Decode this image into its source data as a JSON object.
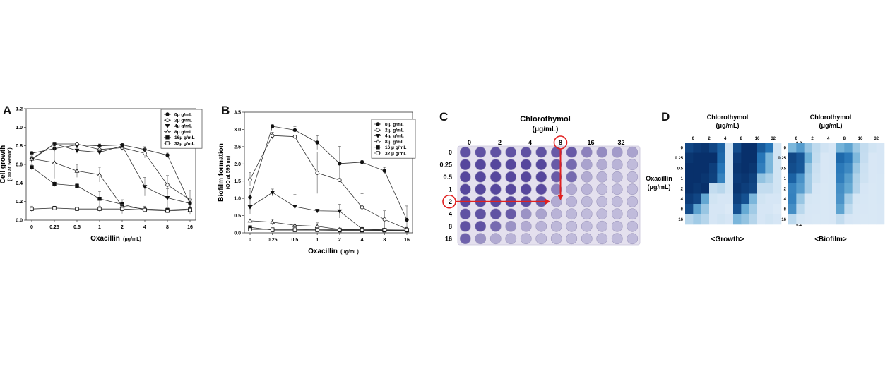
{
  "panels": {
    "A": {
      "letter": "A"
    },
    "B": {
      "letter": "B"
    },
    "C": {
      "letter": "C"
    },
    "D": {
      "letter": "D"
    }
  },
  "chart_data": [
    {
      "id": "A",
      "type": "line",
      "ylabel": "Cell growth",
      "ylabel_sub": "(OD at 595nm)",
      "xlabel": "Oxacillin",
      "xlabel_unit": "(μg/mL)",
      "categories": [
        "0",
        "0.25",
        "0.5",
        "1",
        "2",
        "4",
        "8",
        "16"
      ],
      "ylim": [
        0,
        1.2
      ],
      "yticks": [
        "0.0",
        "0.2",
        "0.4",
        "0.6",
        "0.8",
        "1.0",
        "1.2"
      ],
      "legend_position": "top-right",
      "series": [
        {
          "name": "0μ g/mL",
          "marker": "circle-filled",
          "values": [
            0.72,
            0.77,
            0.81,
            0.8,
            0.81,
            0.76,
            0.7,
            0.18
          ],
          "errors": [
            0.02,
            0.03,
            0.02,
            0.02,
            0.02,
            0.03,
            0.03,
            0.04
          ]
        },
        {
          "name": "2μ g/mL",
          "marker": "circle-open",
          "values": [
            0.66,
            0.82,
            0.82,
            0.76,
            0.78,
            0.72,
            0.38,
            0.22
          ],
          "errors": [
            0.03,
            0.02,
            0.02,
            0.03,
            0.03,
            0.05,
            0.1,
            0.1
          ]
        },
        {
          "name": "4μ g/mL",
          "marker": "triangle-down-filled",
          "values": [
            0.65,
            0.82,
            0.75,
            0.73,
            0.8,
            0.36,
            0.24,
            0.18
          ],
          "errors": [
            0.02,
            0.02,
            0.03,
            0.03,
            0.03,
            0.1,
            0.1,
            0.06
          ]
        },
        {
          "name": "8μ g/mL",
          "marker": "triangle-up-open",
          "values": [
            0.66,
            0.62,
            0.53,
            0.49,
            0.15,
            0.12,
            0.11,
            0.11
          ],
          "errors": [
            0.05,
            0.17,
            0.07,
            0.08,
            0.04,
            0.03,
            0.02,
            0.02
          ]
        },
        {
          "name": "16μ g/mL",
          "marker": "square-filled",
          "values": [
            0.57,
            0.39,
            0.37,
            0.23,
            0.17,
            0.11,
            0.11,
            0.12
          ],
          "errors": [
            0.03,
            0.03,
            0.02,
            0.08,
            0.05,
            0.02,
            0.02,
            0.03
          ]
        },
        {
          "name": "32μ g/mL",
          "marker": "square-open",
          "values": [
            0.12,
            0.13,
            0.12,
            0.12,
            0.12,
            0.11,
            0.1,
            0.11
          ],
          "errors": [
            0.03,
            0.02,
            0.02,
            0.03,
            0.05,
            0.02,
            0.02,
            0.05
          ]
        }
      ]
    },
    {
      "id": "B",
      "type": "line",
      "ylabel": "Biofilm formation",
      "ylabel_sub": "(OD at 595nm)",
      "xlabel": "Oxacillin",
      "xlabel_unit": "(μg/mL)",
      "categories": [
        "0",
        "0.25",
        "0.5",
        "1",
        "2",
        "4",
        "8",
        "16"
      ],
      "ylim": [
        0,
        3.5
      ],
      "yticks": [
        "0.0",
        "0.5",
        "1.0",
        "1.5",
        "2.0",
        "2.5",
        "3.0",
        "3.5"
      ],
      "legend_position": "top-right",
      "series": [
        {
          "name": "0 μ g/mL",
          "marker": "circle-filled",
          "values": [
            1.03,
            3.09,
            2.98,
            2.62,
            2.01,
            2.05,
            1.8,
            0.38
          ],
          "errors": [
            0.25,
            0.05,
            0.1,
            0.2,
            0.5,
            0.05,
            0.1,
            0.4
          ]
        },
        {
          "name": "2 μ g/mL",
          "marker": "circle-open",
          "values": [
            1.55,
            2.82,
            2.79,
            1.74,
            1.53,
            0.74,
            0.39,
            0.11
          ],
          "errors": [
            0.2,
            0.1,
            0.15,
            0.6,
            0.05,
            0.4,
            0.25,
            0.05
          ]
        },
        {
          "name": "4 μ g/mL",
          "marker": "triangle-down-filled",
          "values": [
            0.75,
            1.17,
            0.76,
            0.64,
            0.63,
            0.11,
            0.09,
            0.08
          ],
          "errors": [
            0.2,
            0.1,
            0.35,
            0.05,
            0.2,
            0.05,
            0.03,
            0.03
          ]
        },
        {
          "name": "8 μ g/mL",
          "marker": "triangle-up-open",
          "values": [
            0.35,
            0.31,
            0.22,
            0.19,
            0.1,
            0.09,
            0.08,
            0.07
          ],
          "errors": [
            0.05,
            0.08,
            0.04,
            0.1,
            0.04,
            0.03,
            0.03,
            0.02
          ]
        },
        {
          "name": "16 μ g/mL",
          "marker": "square-filled",
          "values": [
            0.16,
            0.08,
            0.08,
            0.08,
            0.07,
            0.07,
            0.07,
            0.07
          ],
          "errors": [
            0.03,
            0.02,
            0.02,
            0.02,
            0.02,
            0.02,
            0.02,
            0.02
          ]
        },
        {
          "name": "32 μ g/mL",
          "marker": "square-open",
          "values": [
            0.1,
            0.1,
            0.1,
            0.09,
            0.09,
            0.09,
            0.08,
            0.08
          ],
          "errors": [
            0.02,
            0.02,
            0.02,
            0.02,
            0.02,
            0.02,
            0.02,
            0.02
          ]
        }
      ]
    },
    {
      "id": "C",
      "type": "table",
      "title": "Chlorothymol",
      "title_unit": "(μg/mL)",
      "col_labels": [
        "0",
        "2",
        "4",
        "8",
        "16",
        "32"
      ],
      "row_labels": [
        "0",
        "0.25",
        "0.5",
        "1",
        "2",
        "4",
        "8",
        "16"
      ],
      "highlight_row": "2",
      "highlight_col": "8",
      "well_intensity": [
        [
          0.85,
          0.85,
          0.85,
          0.85,
          0.85,
          0.85,
          0.8,
          0.8,
          0.55,
          0.5,
          0.4,
          0.35
        ],
        [
          0.92,
          0.92,
          0.92,
          0.92,
          0.92,
          0.92,
          0.8,
          0.7,
          0.35,
          0.3,
          0.25,
          0.2
        ],
        [
          0.92,
          0.92,
          0.92,
          0.92,
          0.92,
          0.92,
          0.8,
          0.7,
          0.3,
          0.25,
          0.22,
          0.2
        ],
        [
          0.92,
          0.92,
          0.92,
          0.92,
          0.92,
          0.9,
          0.55,
          0.3,
          0.25,
          0.2,
          0.2,
          0.2
        ],
        [
          0.9,
          0.9,
          0.9,
          0.9,
          0.88,
          0.8,
          0.3,
          0.25,
          0.22,
          0.2,
          0.2,
          0.2
        ],
        [
          0.85,
          0.85,
          0.85,
          0.8,
          0.45,
          0.35,
          0.25,
          0.22,
          0.2,
          0.2,
          0.2,
          0.2
        ],
        [
          0.85,
          0.85,
          0.7,
          0.45,
          0.3,
          0.25,
          0.22,
          0.2,
          0.2,
          0.2,
          0.2,
          0.2
        ],
        [
          0.75,
          0.45,
          0.3,
          0.25,
          0.22,
          0.2,
          0.2,
          0.2,
          0.2,
          0.2,
          0.2,
          0.2
        ]
      ]
    },
    {
      "id": "D-growth",
      "type": "heatmap",
      "title": "Chlorothymol",
      "title_unit": "(μg/mL)",
      "ylabel": "Oxacillin",
      "ylabel_unit": "(μg/mL)",
      "caption": "<Growth>",
      "col_labels": [
        "0",
        "2",
        "4",
        "8",
        "16",
        "32"
      ],
      "row_labels": [
        "0",
        "0.25",
        "0.5",
        "1",
        "2",
        "4",
        "8",
        "16"
      ],
      "colorbar_max": "0.8",
      "colorbar_min": "0.1",
      "vmin": 0.1,
      "vmax": 0.8,
      "values": [
        [
          0.72,
          0.76,
          0.78,
          0.72,
          0.62,
          0.12,
          0.7,
          0.8,
          0.8,
          0.65,
          0.55,
          0.12
        ],
        [
          0.78,
          0.8,
          0.82,
          0.8,
          0.6,
          0.12,
          0.76,
          0.8,
          0.82,
          0.55,
          0.3,
          0.12
        ],
        [
          0.8,
          0.82,
          0.8,
          0.75,
          0.55,
          0.12,
          0.78,
          0.8,
          0.78,
          0.52,
          0.3,
          0.12
        ],
        [
          0.8,
          0.8,
          0.78,
          0.74,
          0.5,
          0.12,
          0.76,
          0.78,
          0.74,
          0.25,
          0.2,
          0.12
        ],
        [
          0.81,
          0.78,
          0.8,
          0.15,
          0.17,
          0.12,
          0.78,
          0.75,
          0.72,
          0.15,
          0.15,
          0.12
        ],
        [
          0.76,
          0.72,
          0.36,
          0.12,
          0.11,
          0.11,
          0.74,
          0.68,
          0.3,
          0.12,
          0.11,
          0.11
        ],
        [
          0.7,
          0.38,
          0.24,
          0.11,
          0.11,
          0.1,
          0.68,
          0.35,
          0.22,
          0.11,
          0.11,
          0.1
        ],
        [
          0.18,
          0.22,
          0.18,
          0.11,
          0.12,
          0.11,
          0.3,
          0.25,
          0.18,
          0.11,
          0.12,
          0.11
        ]
      ]
    },
    {
      "id": "D-biofilm",
      "type": "heatmap",
      "title": "Chlorothymol",
      "title_unit": "(μg/mL)",
      "caption": "<Biofilm>",
      "col_labels": [
        "0",
        "2",
        "4",
        "8",
        "16",
        "32"
      ],
      "row_labels": [
        "0",
        "0.25",
        "0.5",
        "1",
        "2",
        "4",
        "8",
        "16"
      ],
      "colorbar_max": "3.5",
      "colorbar_min": "0.05",
      "vmin": 0.05,
      "vmax": 3.5,
      "values": [
        [
          1.03,
          1.55,
          0.75,
          0.35,
          0.16,
          0.1,
          1.1,
          1.4,
          0.7,
          0.3,
          0.15,
          0.1
        ],
        [
          3.09,
          2.82,
          1.17,
          0.31,
          0.08,
          0.1,
          2.5,
          2.2,
          1.0,
          0.28,
          0.08,
          0.1
        ],
        [
          2.98,
          2.79,
          0.76,
          0.22,
          0.08,
          0.1,
          2.2,
          1.9,
          0.7,
          0.2,
          0.08,
          0.1
        ],
        [
          2.62,
          1.74,
          0.64,
          0.19,
          0.08,
          0.09,
          2.1,
          1.5,
          0.5,
          0.18,
          0.08,
          0.09
        ],
        [
          2.01,
          1.53,
          0.63,
          0.1,
          0.07,
          0.09,
          1.8,
          1.3,
          0.45,
          0.1,
          0.07,
          0.09
        ],
        [
          2.05,
          0.74,
          0.11,
          0.09,
          0.07,
          0.09,
          1.7,
          0.6,
          0.11,
          0.09,
          0.07,
          0.09
        ],
        [
          1.8,
          0.39,
          0.09,
          0.08,
          0.07,
          0.08,
          1.4,
          0.35,
          0.09,
          0.08,
          0.07,
          0.08
        ],
        [
          0.38,
          0.11,
          0.08,
          0.07,
          0.07,
          0.08,
          0.3,
          0.1,
          0.08,
          0.07,
          0.07,
          0.08
        ]
      ]
    }
  ],
  "colors": {
    "plate_bg": "#e4e0ee",
    "well_full": "#4a3a96",
    "well_empty": "#dedbec",
    "highlight": "#e02020",
    "heat_low": "#dbe9f6",
    "heat_high": "#08306b"
  }
}
